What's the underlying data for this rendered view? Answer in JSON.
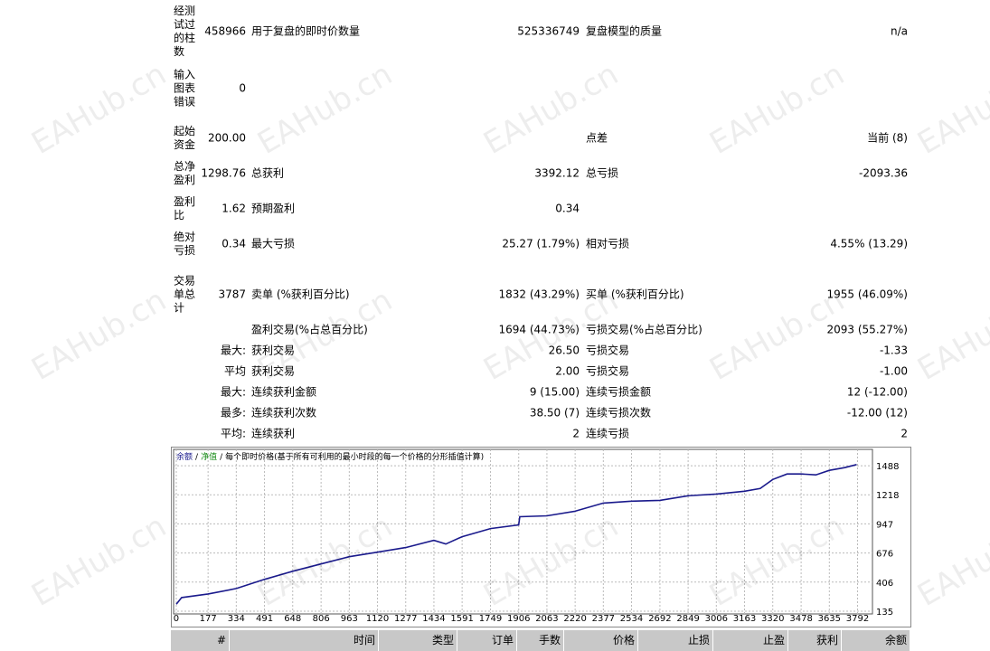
{
  "watermark": "EAHub.cn",
  "report": {
    "rows": [
      [
        "经测试过的柱数",
        "458966",
        "用于复盘的即时价数量",
        "525336749",
        "复盘模型的质量",
        "n/a"
      ],
      [
        "输入图表错误",
        "0"
      ],
      [
        "起始资金",
        "200.00",
        null,
        null,
        "点差",
        "当前 (8)"
      ],
      [
        "总净盈利",
        "1298.76",
        "总获利",
        "3392.12",
        "总亏损",
        "-2093.36"
      ],
      [
        "盈利比",
        "1.62",
        "预期盈利",
        "0.34"
      ],
      [
        "绝对亏损",
        "0.34",
        "最大亏损",
        "25.27 (1.79%)",
        "相对亏损",
        "4.55% (13.29)"
      ],
      [
        "交易单总计",
        "3787",
        "卖单 (%获利百分比)",
        "1832 (43.29%)",
        "买单 (%获利百分比)",
        "1955 (46.09%)"
      ],
      [
        null,
        null,
        "盈利交易(%占总百分比)",
        "1694 (44.73%)",
        "亏损交易(%占总百分比)",
        "2093 (55.27%)"
      ],
      [
        null,
        "最大:",
        "获利交易",
        "26.50",
        "亏损交易",
        "-1.33"
      ],
      [
        null,
        "平均",
        "获利交易",
        "2.00",
        "亏损交易",
        "-1.00"
      ],
      [
        null,
        "最大:",
        "连续获利金额",
        "9 (15.00)",
        "连续亏损金额",
        "12 (-12.00)"
      ],
      [
        null,
        "最多:",
        "连续获利次数",
        "38.50 (7)",
        "连续亏损次数",
        "-12.00 (12)"
      ],
      [
        null,
        "平均:",
        "连续获利",
        "2",
        "连续亏损",
        "2"
      ]
    ]
  },
  "chart_data": {
    "type": "line",
    "legend_items": [
      "余额",
      "净值"
    ],
    "legend_separator": "/",
    "legend_title": "每个即时价格(基于所有可利用的最小时段的每一个价格的分形插值计算)",
    "grid": true,
    "xlim": [
      -15,
      3875
    ],
    "ylim": [
      110,
      1640
    ],
    "xticks": [
      0,
      177,
      334,
      491,
      648,
      806,
      963,
      1120,
      1277,
      1434,
      1591,
      1749,
      1906,
      2063,
      2220,
      2377,
      2534,
      2692,
      2849,
      3006,
      3163,
      3320,
      3478,
      3635,
      3792
    ],
    "yticks": [
      135,
      406,
      676,
      947,
      1218,
      1488
    ],
    "series": [
      {
        "name": "余额",
        "color": "#1a1a8c",
        "x": [
          0,
          30,
          177,
          334,
          491,
          648,
          806,
          963,
          1120,
          1277,
          1434,
          1500,
          1591,
          1749,
          1906,
          1912,
          2063,
          2220,
          2377,
          2534,
          2692,
          2849,
          3006,
          3163,
          3250,
          3320,
          3400,
          3478,
          3560,
          3635,
          3720,
          3787
        ],
        "values": [
          200,
          262,
          296,
          346,
          431,
          507,
          575,
          642,
          684,
          727,
          794,
          760,
          828,
          904,
          938,
          1014,
          1022,
          1065,
          1141,
          1158,
          1166,
          1209,
          1225,
          1251,
          1276,
          1360,
          1411,
          1411,
          1403,
          1445,
          1470,
          1498.76
        ]
      }
    ]
  },
  "trades_table": {
    "headers": [
      "#",
      "时间",
      "类型",
      "订单",
      "手数",
      "价格",
      "止损",
      "止盈",
      "获利",
      "余额"
    ]
  }
}
